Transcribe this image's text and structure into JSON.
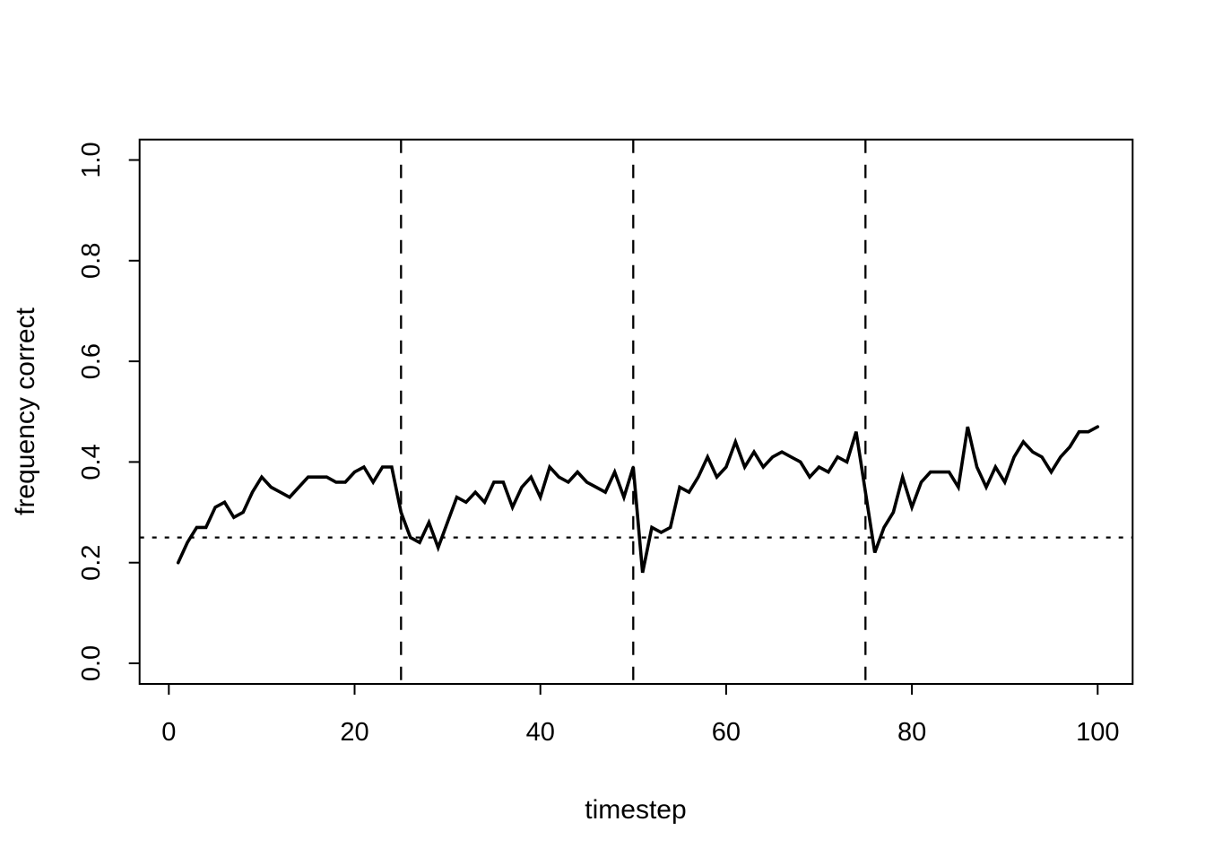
{
  "chart_data": {
    "type": "line",
    "title": "",
    "xlabel": "timestep",
    "ylabel": "frequency correct",
    "xlim": [
      0,
      104
    ],
    "ylim": [
      0.0,
      1.04
    ],
    "xticks": [
      "0",
      "20",
      "40",
      "60",
      "80",
      "100"
    ],
    "xtick_values": [
      0,
      20,
      40,
      60,
      80,
      100
    ],
    "yticks": [
      "0.0",
      "0.2",
      "0.4",
      "0.6",
      "0.8",
      "1.0"
    ],
    "ytick_values": [
      0.0,
      0.2,
      0.4,
      0.6,
      0.8,
      1.0
    ],
    "grid": false,
    "legend": null,
    "background": "#ffffff",
    "line_color": "#000000",
    "axis_color": "#000000",
    "reference_lines": {
      "vertical_dashed_x": [
        25,
        50,
        75
      ],
      "horizontal_dotted_y": [
        0.25
      ]
    },
    "series": [
      {
        "name": "frequency correct",
        "x": [
          1,
          2,
          3,
          4,
          5,
          6,
          7,
          8,
          9,
          10,
          11,
          12,
          13,
          14,
          15,
          16,
          17,
          18,
          19,
          20,
          21,
          22,
          23,
          24,
          25,
          26,
          27,
          28,
          29,
          30,
          31,
          32,
          33,
          34,
          35,
          36,
          37,
          38,
          39,
          40,
          41,
          42,
          43,
          44,
          45,
          46,
          47,
          48,
          49,
          50,
          51,
          52,
          53,
          54,
          55,
          56,
          57,
          58,
          59,
          60,
          61,
          62,
          63,
          64,
          65,
          66,
          67,
          68,
          69,
          70,
          71,
          72,
          73,
          74,
          75,
          76,
          77,
          78,
          79,
          80,
          81,
          82,
          83,
          84,
          85,
          86,
          87,
          88,
          89,
          90,
          91,
          92,
          93,
          94,
          95,
          96,
          97,
          98,
          99,
          100
        ],
        "values": [
          0.2,
          0.24,
          0.27,
          0.27,
          0.31,
          0.32,
          0.29,
          0.3,
          0.34,
          0.37,
          0.35,
          0.34,
          0.33,
          0.35,
          0.37,
          0.37,
          0.37,
          0.36,
          0.36,
          0.38,
          0.39,
          0.36,
          0.39,
          0.39,
          0.3,
          0.25,
          0.24,
          0.28,
          0.23,
          0.28,
          0.33,
          0.32,
          0.34,
          0.32,
          0.36,
          0.36,
          0.31,
          0.35,
          0.37,
          0.33,
          0.39,
          0.37,
          0.36,
          0.38,
          0.36,
          0.35,
          0.34,
          0.38,
          0.33,
          0.39,
          0.18,
          0.27,
          0.26,
          0.27,
          0.35,
          0.34,
          0.37,
          0.41,
          0.37,
          0.39,
          0.44,
          0.39,
          0.42,
          0.39,
          0.41,
          0.42,
          0.41,
          0.4,
          0.37,
          0.39,
          0.38,
          0.41,
          0.4,
          0.46,
          0.34,
          0.22,
          0.27,
          0.3,
          0.37,
          0.31,
          0.36,
          0.38,
          0.38,
          0.38,
          0.35,
          0.47,
          0.39,
          0.35,
          0.39,
          0.36,
          0.41,
          0.44,
          0.42,
          0.41,
          0.38,
          0.41,
          0.43,
          0.46,
          0.46,
          0.47
        ]
      }
    ]
  }
}
